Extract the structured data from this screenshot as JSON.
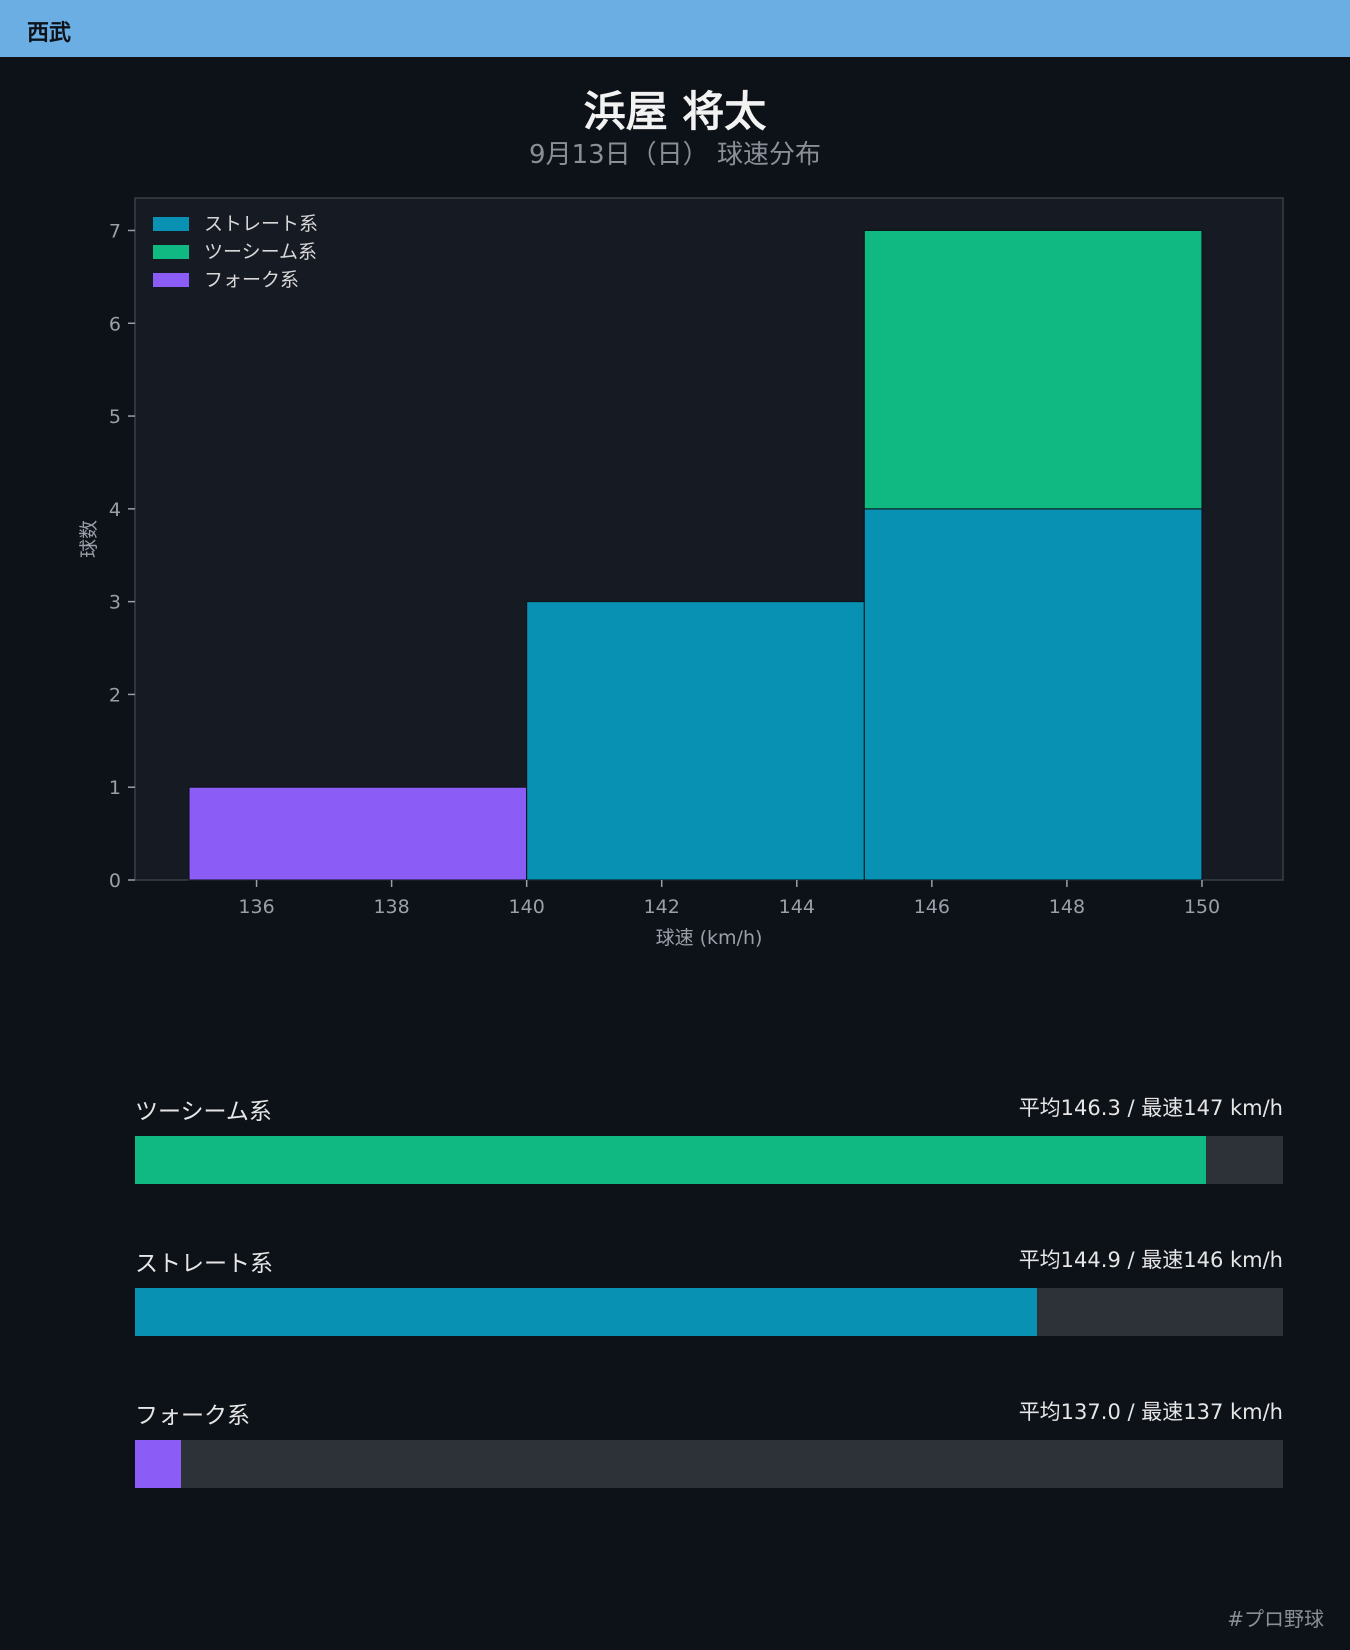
{
  "header": {
    "team": "西武",
    "player_name": "浜屋 将太",
    "subtitle": "9月13日（日） 球速分布"
  },
  "colors": {
    "background": "#0d1118",
    "header_bar": "#6aaee4",
    "plot_background": "#161a22",
    "straight": "#0891b2",
    "two_seam": "#10b981",
    "fork": "#8b5cf6",
    "bar_track": "#2d3238"
  },
  "chart_data": {
    "type": "bar",
    "stacked": true,
    "xlabel": "球速 (km/h)",
    "ylabel": "球数",
    "xlim": [
      134.2,
      151.2
    ],
    "ylim": [
      0,
      7.35
    ],
    "x_ticks": [
      136,
      138,
      140,
      142,
      144,
      146,
      148,
      150
    ],
    "y_ticks": [
      0,
      1,
      2,
      3,
      4,
      5,
      6,
      7
    ],
    "bins": [
      [
        135,
        140
      ],
      [
        140,
        145
      ],
      [
        145,
        150
      ]
    ],
    "series": [
      {
        "name": "ストレート系",
        "color": "#0891b2",
        "values": [
          0,
          3,
          4
        ]
      },
      {
        "name": "ツーシーム系",
        "color": "#10b981",
        "values": [
          0,
          0,
          3
        ]
      },
      {
        "name": "フォーク系",
        "color": "#8b5cf6",
        "values": [
          1,
          0,
          0
        ]
      }
    ],
    "legend": [
      "ストレート系",
      "ツーシーム系",
      "フォーク系"
    ],
    "legend_position": "top-left",
    "grid": false
  },
  "speed_bars": [
    {
      "label": "ツーシーム系",
      "stats": "平均146.3 / 最速147 km/h",
      "color": "#10b981",
      "fill": 0.933
    },
    {
      "label": "ストレート系",
      "stats": "平均144.9 / 最速146 km/h",
      "color": "#0891b2",
      "fill": 0.786
    },
    {
      "label": "フォーク系",
      "stats": "平均137.0 / 最速137 km/h",
      "color": "#8b5cf6",
      "fill": 0.04
    }
  ],
  "footer": {
    "hashtag": "#プロ野球"
  }
}
